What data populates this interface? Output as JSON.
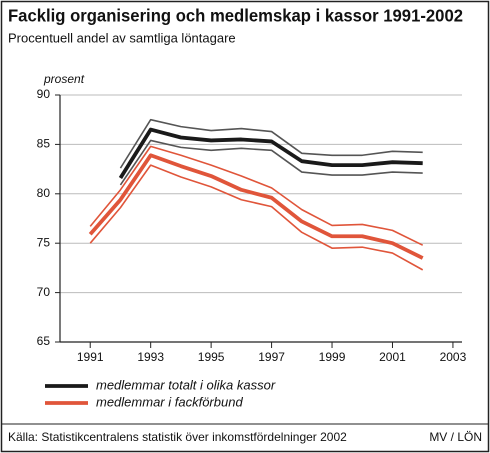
{
  "chart_data": {
    "type": "line",
    "title": "Facklig organisering och medlemskap i kassor 1991-2002",
    "subtitle": "Procentuell andel av samtliga löntagare",
    "ylabel": "prosent",
    "source": "Källa: Statistikcentralens statistik över inkomstfördelninger 2002",
    "credit": "MV / LÖN",
    "x": [
      1991,
      1992,
      1993,
      1994,
      1995,
      1996,
      1997,
      1998,
      1999,
      2000,
      2001,
      2002
    ],
    "xlim": [
      1990,
      2003.3
    ],
    "xticks": [
      1991,
      1993,
      1995,
      1997,
      1999,
      2001,
      2003
    ],
    "ylim": [
      65,
      90
    ],
    "yticks": [
      65,
      70,
      75,
      80,
      85,
      90
    ],
    "grid": true,
    "series": [
      {
        "name": "medlemmar totalt i olika kassor",
        "color": "#1a1a1a",
        "band_color": "#555555",
        "values": [
          null,
          81.6,
          86.5,
          85.7,
          85.4,
          85.5,
          85.3,
          83.3,
          82.9,
          82.9,
          83.2,
          83.1
        ],
        "upper": [
          null,
          82.6,
          87.5,
          86.8,
          86.4,
          86.6,
          86.3,
          84.1,
          83.9,
          83.9,
          84.3,
          84.2
        ],
        "lower": [
          null,
          80.9,
          85.4,
          84.7,
          84.4,
          84.6,
          84.4,
          82.2,
          81.9,
          81.9,
          82.2,
          82.1
        ]
      },
      {
        "name": "medlemmar i fackförbund",
        "color": "#e0553a",
        "band_color": "#e0553a",
        "values": [
          75.9,
          79.4,
          83.9,
          82.8,
          81.8,
          80.4,
          79.6,
          77.2,
          75.7,
          75.7,
          75.0,
          73.5
        ],
        "upper": [
          76.7,
          80.4,
          84.8,
          83.9,
          82.9,
          81.8,
          80.6,
          78.4,
          76.8,
          76.9,
          76.3,
          74.8
        ],
        "lower": [
          75.0,
          78.6,
          82.9,
          81.7,
          80.7,
          79.4,
          78.7,
          76.1,
          74.5,
          74.6,
          74.0,
          72.3
        ]
      }
    ]
  }
}
